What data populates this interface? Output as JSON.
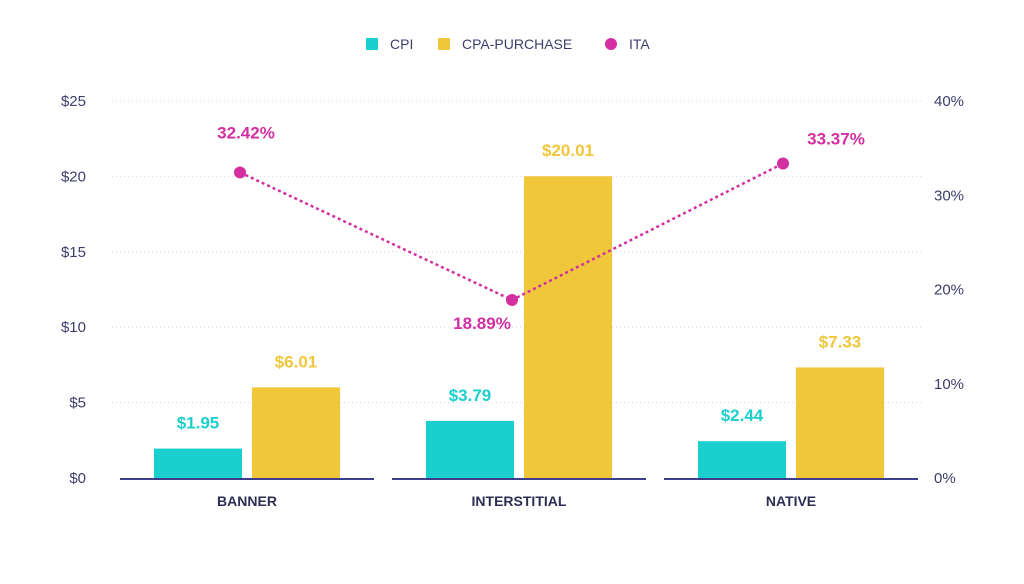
{
  "chart_data": {
    "type": "bar",
    "categories": [
      "BANNER",
      "INTERSTITIAL",
      "NATIVE"
    ],
    "series": [
      {
        "name": "CPI",
        "type": "bar",
        "axis": "left",
        "color": "#1ccfcf",
        "values": [
          1.95,
          3.79,
          2.44
        ],
        "labels": [
          "$1.95",
          "$3.79",
          "$2.44"
        ]
      },
      {
        "name": "CPA-PURCHASE",
        "type": "bar",
        "axis": "left",
        "color": "#f0c63a",
        "values": [
          6.01,
          20.01,
          7.33
        ],
        "labels": [
          "$6.01",
          "$20.01",
          "$7.33"
        ]
      },
      {
        "name": "ITA",
        "type": "line",
        "axis": "right",
        "color": "#d42fa0",
        "values": [
          32.42,
          18.89,
          33.37
        ],
        "labels": [
          "32.42%",
          "18.89%",
          "33.37%"
        ]
      }
    ],
    "y_left": {
      "ticks": [
        "$0",
        "$5",
        "$10",
        "$15",
        "$20",
        "$25"
      ],
      "range": [
        0,
        25
      ]
    },
    "y_right": {
      "ticks": [
        "0%",
        "10%",
        "20%",
        "30%",
        "40%"
      ],
      "range": [
        0,
        40
      ]
    },
    "legend_position": "top-center",
    "grid": true,
    "colors": {
      "axis": "#3d3d6b",
      "grid": "#d6d6e2"
    }
  }
}
